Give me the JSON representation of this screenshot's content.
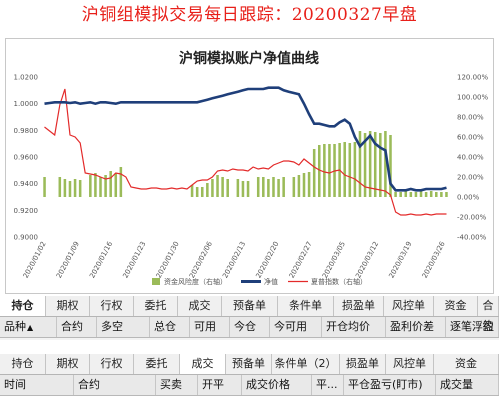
{
  "header": {
    "title": "沪铜组模拟交易每日跟踪：20200327早盘"
  },
  "chart_data": {
    "type": "bar+line",
    "title": "沪铜模拟账户净值曲线",
    "left_axis_ticks": [
      "1.0200",
      "1.0000",
      "0.9800",
      "0.9600",
      "0.9400",
      "0.9200",
      "0.9000"
    ],
    "right_axis_ticks": [
      "120.00%",
      "100.00%",
      "80.00%",
      "60.00%",
      "40.00%",
      "20.00%",
      "0.00%",
      "-20.00%",
      "-40.00%"
    ],
    "x_ticks": [
      "2020/01/02",
      "2020/01/09",
      "2020/01/16",
      "2020/01/23",
      "2020/01/30",
      "2020/02/06",
      "2020/02/13",
      "2020/02/20",
      "2020/02/27",
      "2020/03/05",
      "2020/03/12",
      "2020/03/19",
      "2020/03/26"
    ],
    "ylim_left": [
      0.9,
      1.02
    ],
    "ylim_right": [
      -0.4,
      1.2
    ],
    "series": [
      {
        "name": "资金风险度（右轴）",
        "kind": "bar",
        "color": "#9bbb59",
        "values": [
          0.2,
          0,
          0,
          0.2,
          0.18,
          0.16,
          0.18,
          0.17,
          0,
          0.22,
          0.24,
          0.2,
          0.22,
          0.26,
          0.24,
          0.3,
          0,
          0,
          0,
          0,
          0,
          0,
          0,
          0,
          0,
          0,
          0,
          0,
          0,
          0.12,
          0.1,
          0.1,
          0.14,
          0.18,
          0.22,
          0.2,
          0.18,
          0,
          0.18,
          0.16,
          0.16,
          0,
          0.2,
          0.2,
          0.18,
          0.2,
          0.18,
          0.2,
          0,
          0.2,
          0.22,
          0.24,
          0.25,
          0.48,
          0.52,
          0.53,
          0.53,
          0.53,
          0.54,
          0.55,
          0.54,
          0.55,
          0.66,
          0.64,
          0.66,
          0.65,
          0.64,
          0.66,
          0.62,
          0.05,
          0.05,
          0.06,
          0.05,
          0.05,
          0.06,
          0.05,
          0.06,
          0.05,
          0.05,
          0.05
        ]
      },
      {
        "name": "净值",
        "kind": "line",
        "color": "#1f3f7a",
        "values": [
          1.0,
          1.0005,
          1.001,
          1.001,
          1.001,
          1.0005,
          1.001,
          1.0,
          1.0005,
          1.001,
          1.0,
          1.001,
          1.001,
          1.0005,
          1.0,
          1.001,
          1.001,
          1.001,
          1.001,
          1.001,
          1.001,
          1.001,
          1.001,
          1.001,
          1.001,
          1.001,
          1.001,
          1.001,
          1.001,
          1.001,
          1.001,
          1.002,
          1.003,
          1.004,
          1.005,
          1.006,
          1.007,
          1.008,
          1.009,
          1.01,
          1.011,
          1.011,
          1.011,
          1.011,
          1.012,
          1.012,
          1.012,
          1.01,
          1.009,
          1.008,
          1.007,
          1.0,
          0.992,
          0.985,
          0.985,
          0.984,
          0.983,
          0.983,
          0.986,
          0.988,
          0.985,
          0.975,
          0.968,
          0.972,
          0.976,
          0.97,
          0.967,
          0.965,
          0.94,
          0.935,
          0.935,
          0.935,
          0.936,
          0.935,
          0.935,
          0.936,
          0.936,
          0.936,
          0.936,
          0.937
        ]
      },
      {
        "name": "夏普指数（右轴）",
        "kind": "line",
        "color": "#e32a2a",
        "values": [
          0.7,
          0.66,
          0.62,
          0.92,
          1.08,
          0.62,
          0.6,
          0.54,
          0.24,
          0.23,
          0.22,
          0.2,
          0.18,
          0.19,
          0.24,
          0.23,
          0.2,
          0.1,
          0.09,
          0.08,
          0.08,
          0.09,
          0.09,
          0.08,
          0.08,
          0.09,
          0.08,
          0.09,
          0.08,
          0.12,
          0.16,
          0.17,
          0.17,
          0.2,
          0.26,
          0.27,
          0.26,
          0.28,
          0.27,
          0.27,
          0.26,
          0.3,
          0.28,
          0.29,
          0.28,
          0.32,
          0.34,
          0.36,
          0.36,
          0.35,
          0.32,
          0.38,
          0.34,
          0.3,
          0.27,
          0.25,
          0.24,
          0.26,
          0.27,
          0.22,
          0.2,
          0.18,
          0.14,
          0.1,
          0.09,
          0.08,
          0.07,
          0.06,
          0.02,
          -0.15,
          -0.18,
          -0.18,
          -0.17,
          -0.18,
          -0.18,
          -0.17,
          -0.18,
          -0.17,
          -0.17,
          -0.17
        ]
      }
    ],
    "legend_position": "bottom"
  },
  "positions_tabs": [
    "持仓",
    "期权",
    "行权",
    "委托",
    "成交",
    "预备单",
    "条件单",
    "损盈单",
    "风控单",
    "资金",
    "合约"
  ],
  "positions_columns": [
    "品种",
    "合约",
    "多空",
    "总仓",
    "可用",
    "今仓",
    "今可用",
    "开仓均价",
    "盈利价差",
    "逐笔浮盈"
  ],
  "trades_tabs": [
    "持仓",
    "期权",
    "行权",
    "委托",
    "成交",
    "预备单",
    "条件单（2）",
    "损盈单",
    "风控单",
    "资金"
  ],
  "trades_columns": [
    "时间",
    "合约",
    "买卖",
    "开平",
    "成交价格",
    "平...",
    "平仓盈亏(盯市)",
    "成交量"
  ],
  "sort_icon": "▲"
}
